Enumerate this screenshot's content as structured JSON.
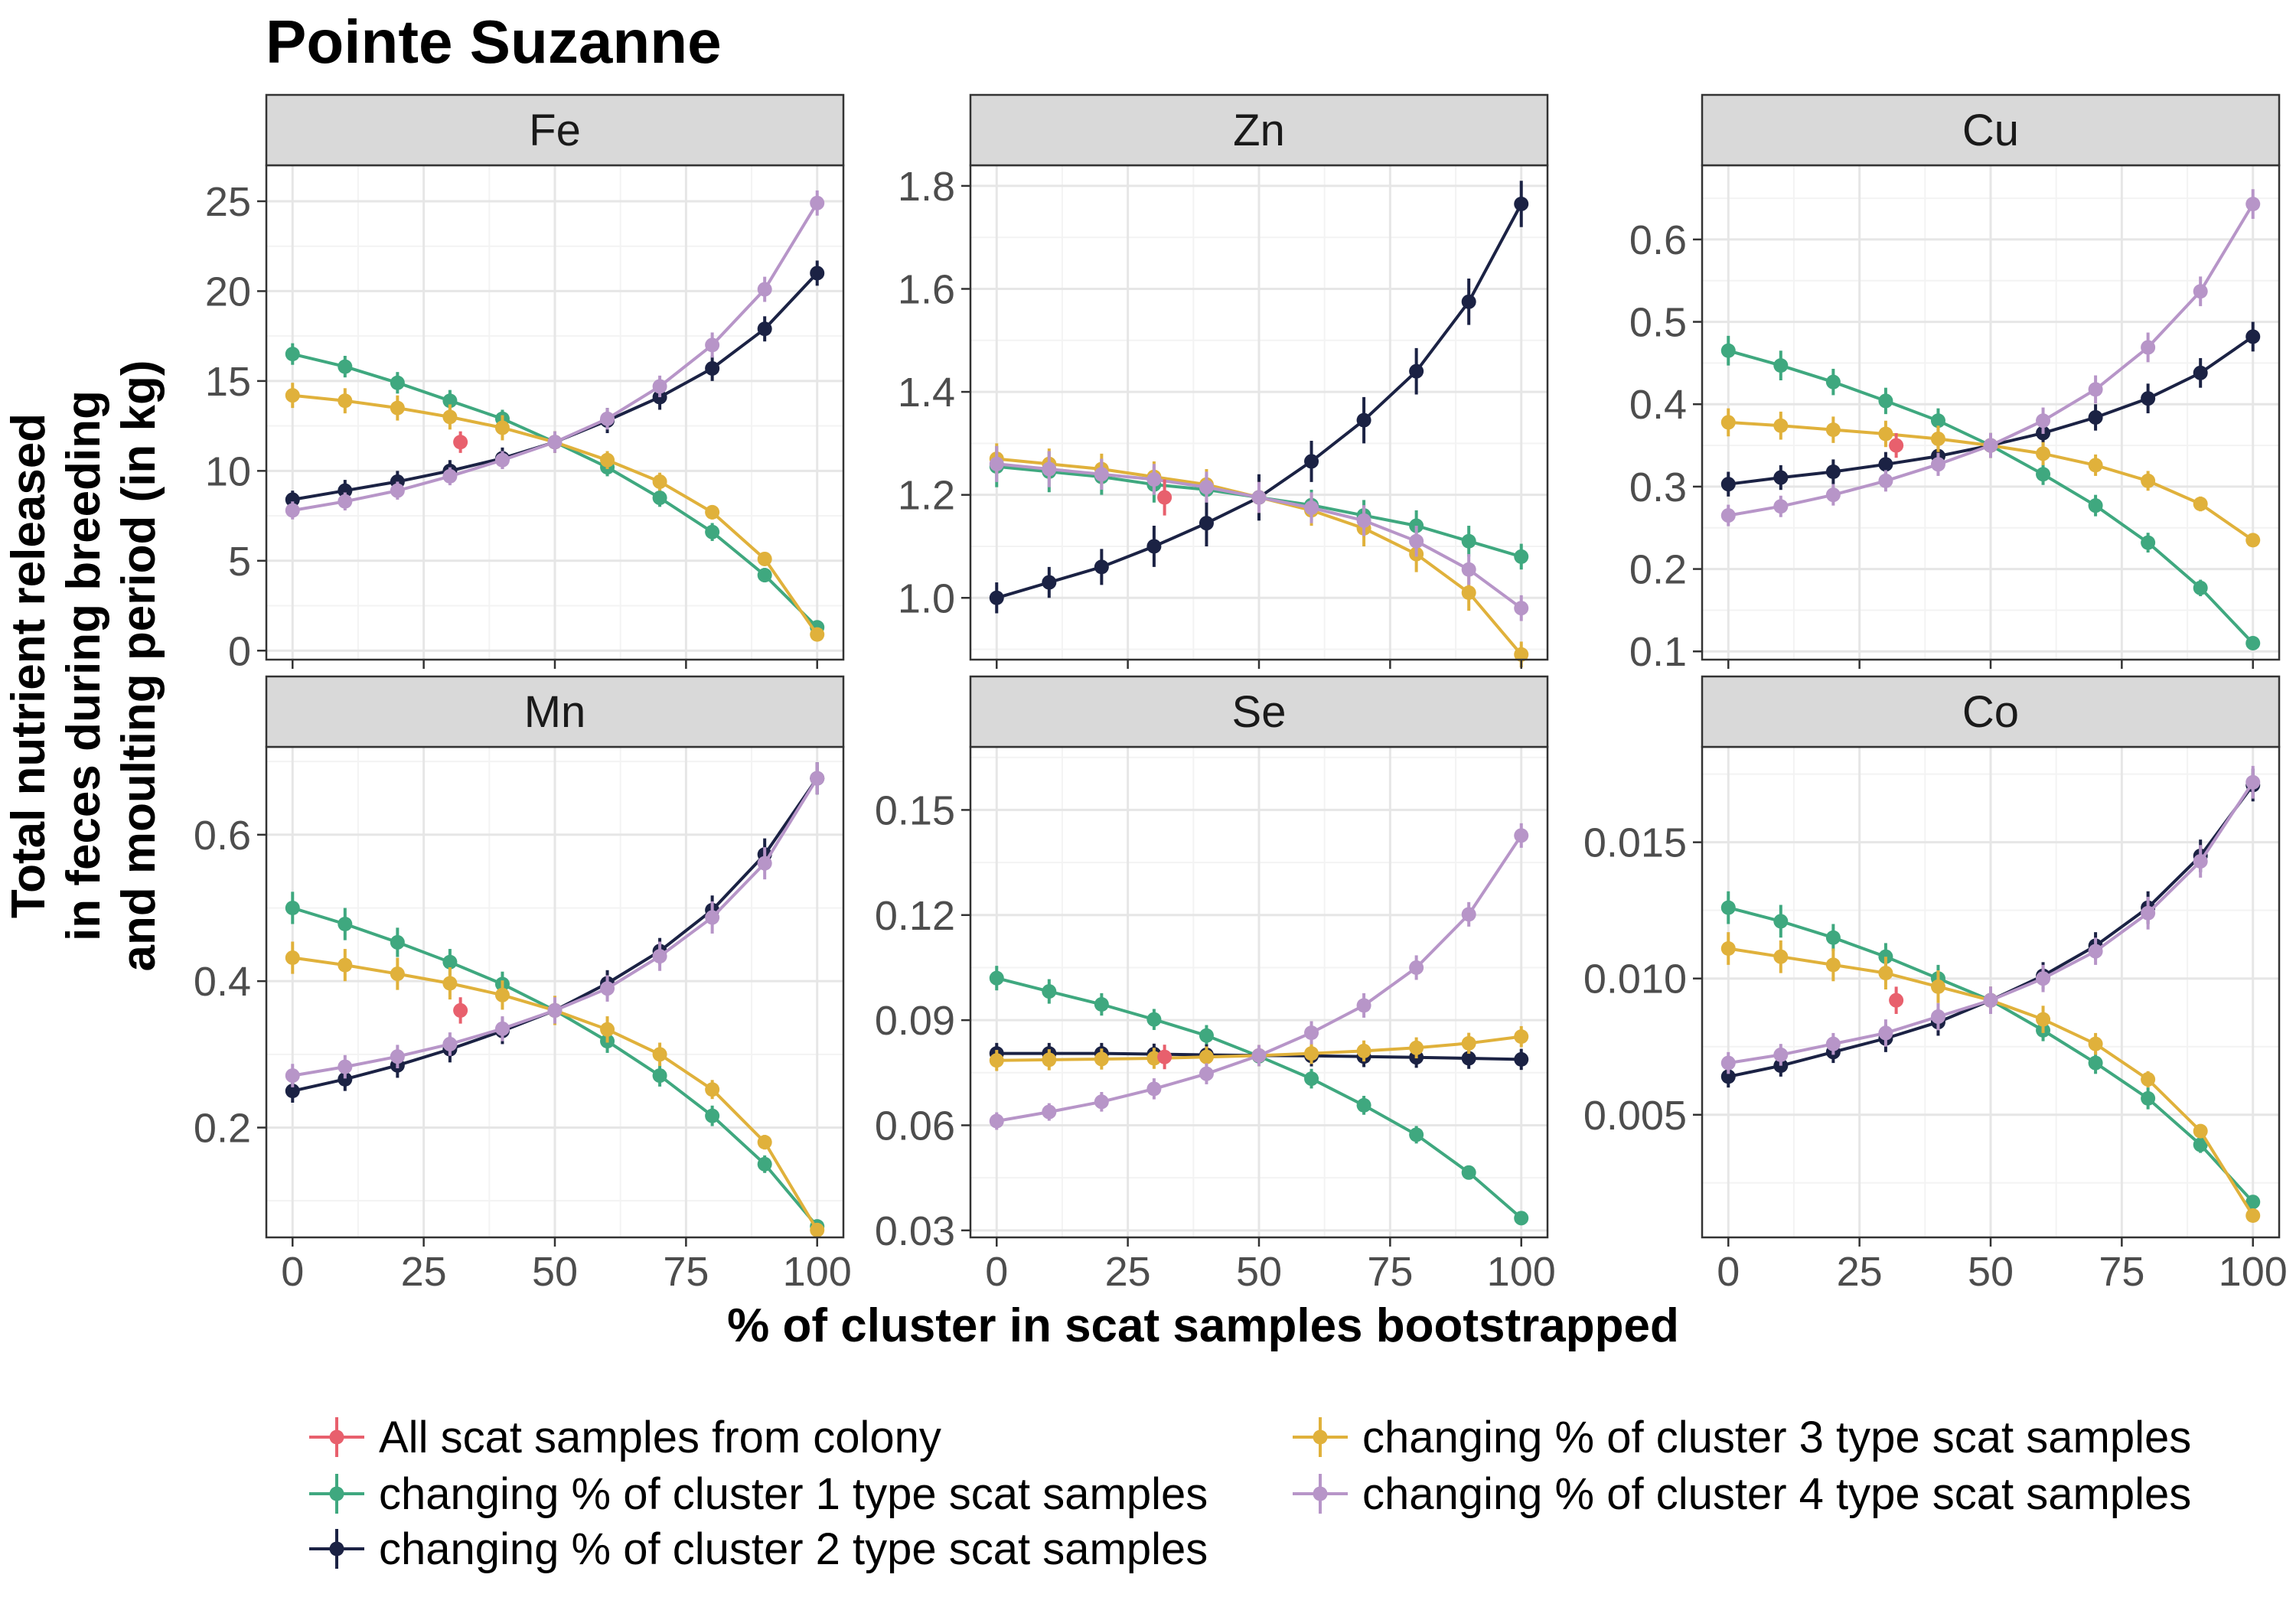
{
  "chart_data": {
    "type": "line",
    "title": "Pointe Suzanne",
    "xlabel": "% of cluster in scat samples bootstrapped",
    "ylabel_lines": [
      "Total nutrient released",
      "in feces during breeding",
      "and moulting period (in kg)"
    ],
    "x": [
      0,
      10,
      20,
      30,
      40,
      50,
      60,
      70,
      80,
      90,
      100
    ],
    "x_ticks": [
      0,
      25,
      50,
      75,
      100
    ],
    "x_tick_labels": [
      "0",
      "25",
      "50",
      "75",
      "100"
    ],
    "xlim": [
      -5,
      105
    ],
    "grid": true,
    "legend_position": "bottom",
    "legend": [
      {
        "label": "All scat samples from colony",
        "color": "#E8606D"
      },
      {
        "label": "changing % of cluster 1 type scat samples",
        "color": "#3FA87F"
      },
      {
        "label": "changing % of cluster 2 type scat samples",
        "color": "#1B2244"
      },
      {
        "label": "changing % of cluster 3 type scat samples",
        "color": "#E0B13B"
      },
      {
        "label": "changing % of cluster 4 type scat samples",
        "color": "#B795C8"
      }
    ],
    "panels": [
      {
        "name": "Fe",
        "ylim": [
          -0.5,
          27
        ],
        "y_ticks": [
          0,
          5,
          10,
          15,
          20,
          25
        ],
        "y_tick_labels": [
          "0",
          "5",
          "10",
          "15",
          "20",
          "25"
        ],
        "reference": {
          "x": 32,
          "y": 11.6,
          "err": 0.6
        },
        "series": [
          {
            "values": [
              16.5,
              15.8,
              14.9,
              13.9,
              12.9,
              11.6,
              10.2,
              8.5,
              6.6,
              4.2,
              1.3
            ],
            "err": [
              0.6,
              0.6,
              0.6,
              0.6,
              0.5,
              0.5,
              0.5,
              0.5,
              0.5,
              0.4,
              0.3
            ]
          },
          {
            "values": [
              8.4,
              8.9,
              9.4,
              10.0,
              10.7,
              11.6,
              12.8,
              14.1,
              15.7,
              17.9,
              21.0
            ],
            "err": [
              0.5,
              0.6,
              0.6,
              0.6,
              0.6,
              0.6,
              0.7,
              0.7,
              0.7,
              0.7,
              0.7
            ]
          },
          {
            "values": [
              14.2,
              13.9,
              13.5,
              13.0,
              12.4,
              11.6,
              10.6,
              9.4,
              7.7,
              5.1,
              0.9
            ],
            "err": [
              0.7,
              0.7,
              0.7,
              0.7,
              0.7,
              0.6,
              0.5,
              0.5,
              0.4,
              0.3,
              0.2
            ]
          },
          {
            "values": [
              7.8,
              8.3,
              8.9,
              9.7,
              10.6,
              11.6,
              12.9,
              14.7,
              17.0,
              20.1,
              24.9
            ],
            "err": [
              0.5,
              0.5,
              0.5,
              0.5,
              0.5,
              0.6,
              0.6,
              0.6,
              0.7,
              0.7,
              0.7
            ]
          }
        ]
      },
      {
        "name": "Zn",
        "ylim": [
          0.88,
          1.84
        ],
        "y_ticks": [
          1.0,
          1.2,
          1.4,
          1.6,
          1.8
        ],
        "y_tick_labels": [
          "1.0",
          "1.2",
          "1.4",
          "1.6",
          "1.8"
        ],
        "reference": {
          "x": 32,
          "y": 1.195,
          "err": 0.035
        },
        "series": [
          {
            "values": [
              1.255,
              1.245,
              1.235,
              1.22,
              1.21,
              1.195,
              1.18,
              1.16,
              1.14,
              1.11,
              1.08
            ],
            "err": [
              0.04,
              0.04,
              0.035,
              0.035,
              0.03,
              0.03,
              0.03,
              0.03,
              0.03,
              0.03,
              0.025
            ]
          },
          {
            "values": [
              1.0,
              1.03,
              1.06,
              1.1,
              1.145,
              1.195,
              1.265,
              1.345,
              1.44,
              1.575,
              1.765
            ],
            "err": [
              0.03,
              0.03,
              0.035,
              0.04,
              0.045,
              0.045,
              0.04,
              0.045,
              0.045,
              0.045,
              0.045
            ]
          },
          {
            "values": [
              1.27,
              1.26,
              1.25,
              1.235,
              1.22,
              1.195,
              1.17,
              1.135,
              1.085,
              1.01,
              0.89
            ],
            "err": [
              0.03,
              0.03,
              0.03,
              0.03,
              0.03,
              0.03,
              0.03,
              0.035,
              0.035,
              0.035,
              0.025
            ]
          },
          {
            "values": [
              1.26,
              1.25,
              1.24,
              1.23,
              1.215,
              1.195,
              1.175,
              1.15,
              1.11,
              1.055,
              0.98
            ],
            "err": [
              0.035,
              0.035,
              0.03,
              0.03,
              0.03,
              0.03,
              0.03,
              0.03,
              0.03,
              0.03,
              0.025
            ]
          }
        ]
      },
      {
        "name": "Cu",
        "ylim": [
          0.09,
          0.69
        ],
        "y_ticks": [
          0.1,
          0.2,
          0.3,
          0.4,
          0.5,
          0.6
        ],
        "y_tick_labels": [
          "0.1",
          "0.2",
          "0.3",
          "0.4",
          "0.5",
          "0.6"
        ],
        "reference": {
          "x": 32,
          "y": 0.35,
          "err": 0.015
        },
        "series": [
          {
            "values": [
              0.465,
              0.447,
              0.427,
              0.404,
              0.38,
              0.35,
              0.315,
              0.277,
              0.232,
              0.177,
              0.11
            ],
            "err": [
              0.018,
              0.018,
              0.016,
              0.016,
              0.015,
              0.015,
              0.013,
              0.013,
              0.012,
              0.01,
              0.007
            ]
          },
          {
            "values": [
              0.303,
              0.311,
              0.318,
              0.327,
              0.337,
              0.35,
              0.365,
              0.384,
              0.407,
              0.438,
              0.482
            ],
            "err": [
              0.015,
              0.015,
              0.015,
              0.015,
              0.015,
              0.015,
              0.016,
              0.016,
              0.018,
              0.018,
              0.018
            ]
          },
          {
            "values": [
              0.378,
              0.374,
              0.369,
              0.364,
              0.358,
              0.35,
              0.34,
              0.326,
              0.307,
              0.279,
              0.235
            ],
            "err": [
              0.017,
              0.017,
              0.016,
              0.016,
              0.016,
              0.015,
              0.014,
              0.013,
              0.012,
              0.009,
              0.007
            ]
          },
          {
            "values": [
              0.265,
              0.276,
              0.29,
              0.307,
              0.327,
              0.35,
              0.38,
              0.418,
              0.469,
              0.537,
              0.643
            ],
            "err": [
              0.013,
              0.013,
              0.013,
              0.013,
              0.014,
              0.015,
              0.016,
              0.017,
              0.018,
              0.018,
              0.018
            ]
          }
        ]
      },
      {
        "name": "Mn",
        "ylim": [
          0.05,
          0.72
        ],
        "y_ticks": [
          0.2,
          0.4,
          0.6
        ],
        "y_tick_labels": [
          "0.2",
          "0.4",
          "0.6"
        ],
        "reference": {
          "x": 32,
          "y": 0.36,
          "err": 0.018
        },
        "series": [
          {
            "values": [
              0.5,
              0.478,
              0.453,
              0.426,
              0.396,
              0.36,
              0.318,
              0.271,
              0.216,
              0.15,
              0.065
            ],
            "err": [
              0.022,
              0.022,
              0.02,
              0.018,
              0.017,
              0.016,
              0.016,
              0.015,
              0.014,
              0.012,
              0.008
            ]
          },
          {
            "values": [
              0.25,
              0.266,
              0.285,
              0.307,
              0.332,
              0.36,
              0.397,
              0.441,
              0.497,
              0.573,
              0.677
            ],
            "err": [
              0.016,
              0.016,
              0.017,
              0.018,
              0.018,
              0.018,
              0.018,
              0.018,
              0.02,
              0.022,
              0.022
            ]
          },
          {
            "values": [
              0.432,
              0.422,
              0.41,
              0.397,
              0.381,
              0.36,
              0.334,
              0.3,
              0.252,
              0.18,
              0.06
            ],
            "err": [
              0.022,
              0.022,
              0.022,
              0.022,
              0.02,
              0.02,
              0.018,
              0.016,
              0.013,
              0.01,
              0.006
            ]
          },
          {
            "values": [
              0.271,
              0.283,
              0.297,
              0.314,
              0.335,
              0.36,
              0.39,
              0.434,
              0.487,
              0.561,
              0.677
            ],
            "err": [
              0.016,
              0.016,
              0.016,
              0.016,
              0.017,
              0.018,
              0.018,
              0.02,
              0.022,
              0.022,
              0.022
            ]
          }
        ]
      },
      {
        "name": "Se",
        "ylim": [
          0.028,
          0.168
        ],
        "y_ticks": [
          0.03,
          0.06,
          0.09,
          0.12,
          0.15
        ],
        "y_tick_labels": [
          "0.03",
          "0.06",
          "0.09",
          "0.12",
          "0.15"
        ],
        "reference": {
          "x": 32,
          "y": 0.0795,
          "err": 0.0035
        },
        "series": [
          {
            "values": [
              0.102,
              0.0982,
              0.0945,
              0.0902,
              0.0856,
              0.0797,
              0.0733,
              0.0657,
              0.0573,
              0.0465,
              0.0335
            ],
            "err": [
              0.0035,
              0.0035,
              0.0032,
              0.003,
              0.003,
              0.0028,
              0.0028,
              0.0027,
              0.0025,
              0.002,
              0.0015
            ]
          },
          {
            "values": [
              0.0805,
              0.0805,
              0.0805,
              0.0803,
              0.0801,
              0.0799,
              0.0798,
              0.0796,
              0.0794,
              0.0791,
              0.0788
            ],
            "err": [
              0.003,
              0.003,
              0.003,
              0.003,
              0.003,
              0.003,
              0.003,
              0.003,
              0.003,
              0.003,
              0.003
            ]
          },
          {
            "values": [
              0.0785,
              0.0787,
              0.0789,
              0.0791,
              0.0795,
              0.0799,
              0.0805,
              0.0812,
              0.0821,
              0.0834,
              0.0853
            ],
            "err": [
              0.003,
              0.003,
              0.003,
              0.003,
              0.003,
              0.003,
              0.003,
              0.003,
              0.003,
              0.003,
              0.003
            ]
          },
          {
            "values": [
              0.0612,
              0.0638,
              0.0667,
              0.0704,
              0.0747,
              0.0799,
              0.0864,
              0.0942,
              0.105,
              0.1202,
              0.1427
            ],
            "err": [
              0.0025,
              0.0025,
              0.0028,
              0.003,
              0.003,
              0.003,
              0.0033,
              0.0035,
              0.0035,
              0.0035,
              0.0035
            ]
          }
        ]
      },
      {
        "name": "Co",
        "ylim": [
          0.0005,
          0.0185
        ],
        "y_ticks": [
          0.005,
          0.01,
          0.015
        ],
        "y_tick_labels": [
          "0.005",
          "0.010",
          "0.015"
        ],
        "reference": {
          "x": 32,
          "y": 0.0092,
          "err": 0.0005
        },
        "series": [
          {
            "values": [
              0.0126,
              0.0121,
              0.0115,
              0.0108,
              0.01,
              0.0092,
              0.0081,
              0.0069,
              0.0056,
              0.0039,
              0.0018
            ],
            "err": [
              0.0006,
              0.0006,
              0.0005,
              0.0005,
              0.0005,
              0.0004,
              0.0004,
              0.0004,
              0.0004,
              0.0003,
              0.0002
            ]
          },
          {
            "values": [
              0.0064,
              0.0068,
              0.0073,
              0.0078,
              0.0084,
              0.0092,
              0.0101,
              0.0112,
              0.0126,
              0.0145,
              0.0171
            ],
            "err": [
              0.0004,
              0.0004,
              0.0004,
              0.0005,
              0.0005,
              0.0005,
              0.0005,
              0.0005,
              0.0006,
              0.0006,
              0.0006
            ]
          },
          {
            "values": [
              0.0111,
              0.0108,
              0.0105,
              0.0102,
              0.0097,
              0.0092,
              0.0085,
              0.0076,
              0.0063,
              0.0044,
              0.0013
            ],
            "err": [
              0.0006,
              0.0006,
              0.0006,
              0.0006,
              0.0006,
              0.0005,
              0.0005,
              0.0004,
              0.0003,
              0.0002,
              0.0001
            ]
          },
          {
            "values": [
              0.0069,
              0.0072,
              0.0076,
              0.008,
              0.0086,
              0.0092,
              0.01,
              0.011,
              0.0124,
              0.0143,
              0.0172
            ],
            "err": [
              0.0004,
              0.0004,
              0.0004,
              0.0005,
              0.0005,
              0.0005,
              0.0005,
              0.0005,
              0.0006,
              0.0006,
              0.0006
            ]
          }
        ]
      }
    ]
  }
}
